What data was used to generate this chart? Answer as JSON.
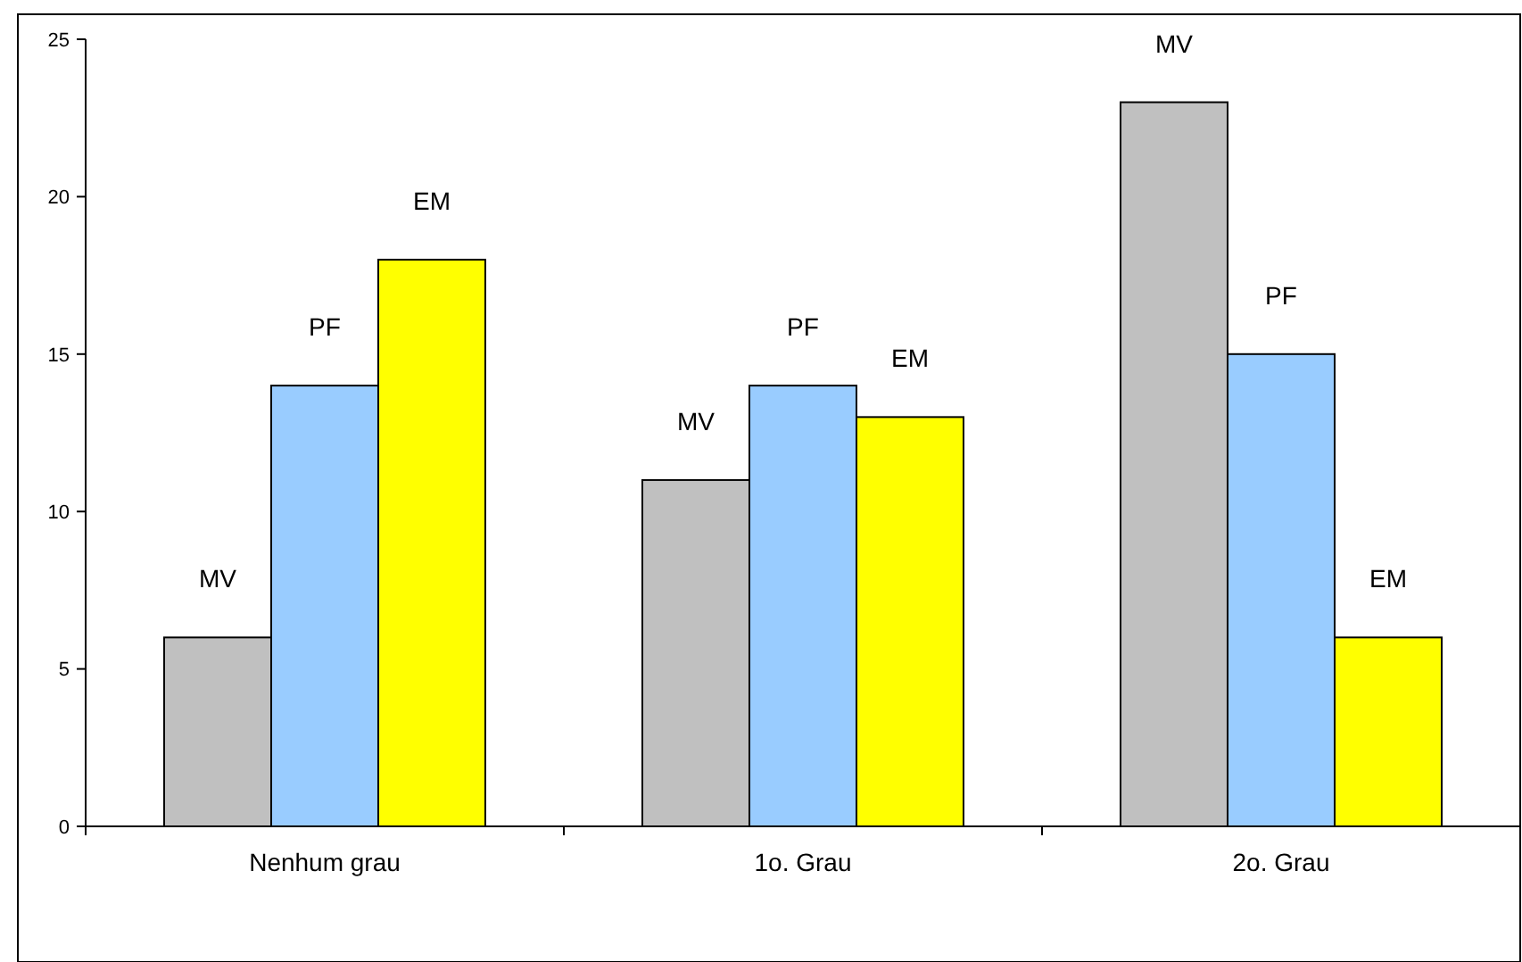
{
  "chart_data": {
    "type": "bar",
    "categories": [
      "Nenhum grau",
      "1o. Grau",
      "2o. Grau"
    ],
    "series": [
      {
        "name": "MV",
        "color": "#c0c0c0",
        "values": [
          6,
          11,
          23
        ]
      },
      {
        "name": "PF",
        "color": "#99ccff",
        "values": [
          14,
          14,
          15
        ]
      },
      {
        "name": "EM",
        "color": "#ffff00",
        "values": [
          18,
          13,
          6
        ]
      }
    ],
    "ylim": [
      0,
      25
    ],
    "yticks": [
      0,
      5,
      10,
      15,
      20,
      25
    ],
    "grid": false
  }
}
